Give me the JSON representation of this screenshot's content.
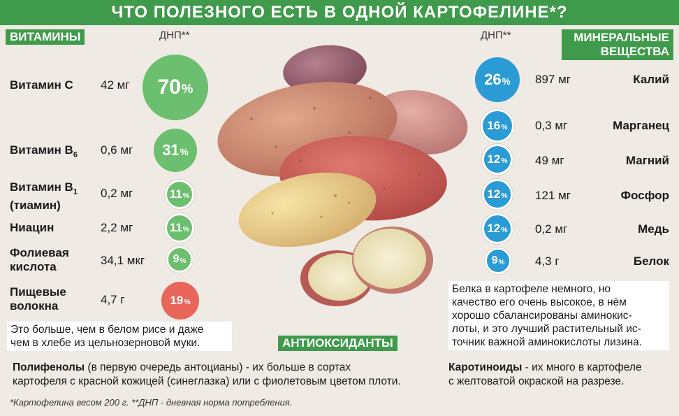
{
  "title": "ЧТО ПОЛЕЗНОГО ЕСТЬ В ОДНОЙ КАРТОФЕЛИНЕ*?",
  "vitamins_label": "ВИТАМИНЫ",
  "minerals_label_line1": "МИНЕРАЛЬНЫЕ",
  "minerals_label_line2": "ВЕЩЕСТВА",
  "dnp_label": "ДНП**",
  "vitamins": [
    {
      "name": "Витамин С",
      "amount": "42 мг",
      "dnp": "70",
      "color": "#6bbf6e"
    },
    {
      "name": "Витамин В",
      "sub": "6",
      "amount": "0,6 мг",
      "dnp": "31",
      "color": "#6bbf6e"
    },
    {
      "name": "Витамин В",
      "sub": "1",
      "name2": "(тиамин)",
      "amount": "0,2 мг",
      "dnp": "11",
      "color": "#6bbf6e"
    },
    {
      "name": "Ниацин",
      "amount": "2,2 мг",
      "dnp": "11",
      "color": "#6bbf6e"
    },
    {
      "name": "Фолиевая",
      "name2": "кислота",
      "amount": "34,1 мкг",
      "dnp": "9",
      "color": "#6bbf6e"
    },
    {
      "name": "Пищевые",
      "name2": "волокна",
      "amount": "4,7 г",
      "dnp": "19",
      "color": "#e9655a"
    }
  ],
  "percent_sign": "%",
  "minerals": [
    {
      "name": "Калий",
      "amount": "897 мг",
      "dnp": "26",
      "color": "#2b9bd6"
    },
    {
      "name": "Марганец",
      "amount": "0,3 мг",
      "dnp": "16",
      "color": "#2b9bd6"
    },
    {
      "name": "Магний",
      "amount": "49 мг",
      "dnp": "12",
      "color": "#2b9bd6"
    },
    {
      "name": "Фосфор",
      "amount": "121 мг",
      "dnp": "12",
      "color": "#2b9bd6"
    },
    {
      "name": "Медь",
      "amount": "0,2 мг",
      "dnp": "12",
      "color": "#2b9bd6"
    },
    {
      "name": "Белок",
      "amount": "4,3 г",
      "dnp": "9",
      "color": "#2b9bd6"
    }
  ],
  "fiber_note_line1": "Это больше, чем в белом рисе и даже",
  "fiber_note_line2": "чем в хлебе из цельнозерновой муки.",
  "protein_note": [
    "Белка в картофеле немного, но",
    "качество его очень высокое, в нём",
    "хорошо сбалансированы аминокис-",
    "лоты, и это лучший растительный ис-",
    "точник важной аминокислоты лизина."
  ],
  "antioxidants_label": "АНТИОКСИДАНТЫ",
  "polyphenols_bold": "Полифенолы",
  "polyphenols_text1": " (в первую очередь антоцианы) - их больше в сортах",
  "polyphenols_text2": "картофеля с красной кожицей (синеглазка) или с фиолетовым цветом плоти.",
  "carotenoids_bold": "Каротиноиды",
  "carotenoids_text1": " - их много в картофеле",
  "carotenoids_text2": "с желтоватой окраской на разрезе.",
  "footnote": "*Картофелина весом 200 г.  **ДНП - дневная норма потребления."
}
